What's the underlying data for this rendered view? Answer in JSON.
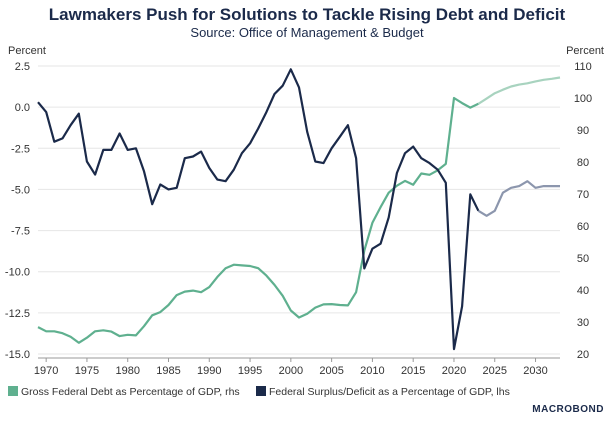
{
  "chart_data": {
    "type": "line",
    "title": "Lawmakers Push for Solutions to Tackle Rising Debt and Deficit",
    "subtitle": "Source: Office of Management & Budget",
    "left_axis_label": "Percent",
    "right_axis_label": "Percent",
    "xlim": [
      1969,
      2033
    ],
    "x_ticks": [
      1970,
      1975,
      1980,
      1985,
      1990,
      1995,
      2000,
      2005,
      2010,
      2015,
      2020,
      2025,
      2030
    ],
    "left_ylim": [
      -15,
      2.5
    ],
    "left_ticks": [
      "2.5",
      "0.0",
      "-2.5",
      "-5.0",
      "-7.5",
      "-10.0",
      "-12.5",
      "-15.0"
    ],
    "right_ylim": [
      20,
      110
    ],
    "right_ticks": [
      "110",
      "100",
      "90",
      "80",
      "70",
      "60",
      "50",
      "40",
      "30",
      "20"
    ],
    "grid": "horizontal",
    "legend_position": "bottom",
    "series": [
      {
        "name": "Gross Federal Debt as Percentage of GDP, rhs",
        "axis": "right",
        "color": "#5fb08f",
        "projection_color": "#a8d3bf",
        "projection_start": 2023,
        "x": [
          1969,
          1970,
          1971,
          1972,
          1973,
          1974,
          1975,
          1976,
          1977,
          1978,
          1979,
          1980,
          1981,
          1982,
          1983,
          1984,
          1985,
          1986,
          1987,
          1988,
          1989,
          1990,
          1991,
          1992,
          1993,
          1994,
          1995,
          1996,
          1997,
          1998,
          1999,
          2000,
          2001,
          2002,
          2003,
          2004,
          2005,
          2006,
          2007,
          2008,
          2009,
          2010,
          2011,
          2012,
          2013,
          2014,
          2015,
          2016,
          2017,
          2018,
          2019,
          2020,
          2021,
          2022,
          2023,
          2024,
          2025,
          2026,
          2027,
          2028,
          2029,
          2030,
          2031,
          2032,
          2033
        ],
        "values": [
          28.4,
          27.1,
          27.1,
          26.5,
          25.4,
          23.5,
          25.1,
          27.1,
          27.4,
          27.0,
          25.6,
          26.0,
          25.8,
          28.7,
          32.1,
          33.1,
          35.3,
          38.4,
          39.5,
          39.8,
          39.3,
          40.9,
          44.1,
          46.8,
          47.9,
          47.7,
          47.5,
          46.8,
          44.5,
          41.6,
          38.2,
          33.6,
          31.4,
          32.6,
          34.5,
          35.5,
          35.6,
          35.3,
          35.2,
          39.3,
          52.3,
          61.0,
          65.9,
          70.4,
          72.6,
          74.1,
          72.9,
          76.4,
          76.0,
          77.4,
          79.4,
          100.0,
          98.4,
          97.0,
          98.2,
          99.8,
          101.5,
          102.6,
          103.6,
          104.2,
          104.6,
          105.2,
          105.7,
          106.0,
          106.4
        ]
      },
      {
        "name": "Federal Surplus/Deficit as a Percentage of GDP, lhs",
        "axis": "left",
        "color": "#1b2a4a",
        "projection_color": "#8c96ad",
        "projection_start": 2023,
        "x": [
          1969,
          1970,
          1971,
          1972,
          1973,
          1974,
          1975,
          1976,
          1977,
          1978,
          1979,
          1980,
          1981,
          1982,
          1983,
          1984,
          1985,
          1986,
          1987,
          1988,
          1989,
          1990,
          1991,
          1992,
          1993,
          1994,
          1995,
          1996,
          1997,
          1998,
          1999,
          2000,
          2001,
          2002,
          2003,
          2004,
          2005,
          2006,
          2007,
          2008,
          2009,
          2010,
          2011,
          2012,
          2013,
          2014,
          2015,
          2016,
          2017,
          2018,
          2019,
          2020,
          2021,
          2022,
          2023,
          2024,
          2025,
          2026,
          2027,
          2028,
          2029,
          2030,
          2031,
          2032,
          2033
        ],
        "values": [
          0.3,
          -0.3,
          -2.1,
          -1.9,
          -1.1,
          -0.4,
          -3.3,
          -4.1,
          -2.6,
          -2.6,
          -1.6,
          -2.6,
          -2.5,
          -3.9,
          -5.9,
          -4.7,
          -5.0,
          -4.9,
          -3.1,
          -3.0,
          -2.7,
          -3.7,
          -4.4,
          -4.5,
          -3.8,
          -2.8,
          -2.2,
          -1.3,
          -0.3,
          0.8,
          1.3,
          2.3,
          1.2,
          -1.5,
          -3.3,
          -3.4,
          -2.5,
          -1.8,
          -1.1,
          -3.1,
          -9.8,
          -8.6,
          -8.3,
          -6.7,
          -4.0,
          -2.8,
          -2.4,
          -3.1,
          -3.4,
          -3.8,
          -4.6,
          -14.7,
          -12.1,
          -5.3,
          -6.3,
          -6.6,
          -6.3,
          -5.2,
          -4.9,
          -4.8,
          -4.5,
          -4.9,
          -4.8,
          -4.8,
          -4.8
        ]
      }
    ]
  },
  "brand": {
    "text": "MACROBOND",
    "color": "#1b2a4a"
  }
}
